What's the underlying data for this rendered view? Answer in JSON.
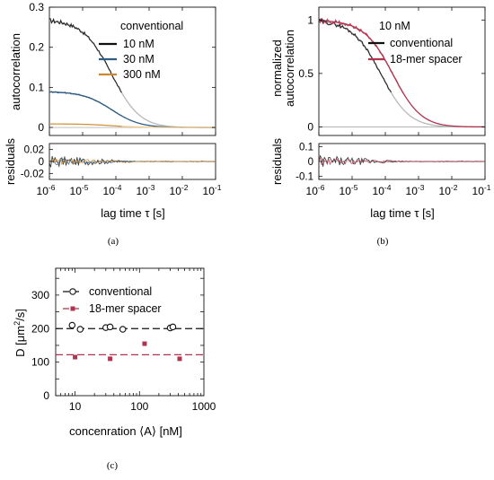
{
  "colors": {
    "black": "#111111",
    "blue": "#2e5d86",
    "orange": "#c98a2e",
    "light_orange": "#f0c98a",
    "red": "#b0344f",
    "gray": "#9a9a9a",
    "light_gray": "#b8b8b8"
  },
  "chart_data": [
    {
      "id": "a",
      "type": "line",
      "subcaption": "(a)",
      "xlabel": "lag time τ [s]",
      "ylabel": "autocorrelation",
      "residual_ylabel": "residuals",
      "x_scale": "log",
      "xlim": [
        1e-06,
        0.1
      ],
      "ylim": [
        -0.02,
        0.3
      ],
      "residual_ylim": [
        -0.03,
        0.03
      ],
      "x_ticks": [
        "10-6",
        "10-5",
        "10-4",
        "10-3",
        "10-2",
        "10-1"
      ],
      "y_ticks": [
        "0",
        "0.1",
        "0.2",
        "0.3"
      ],
      "residual_y_ticks": [
        "-0.02",
        "0",
        "0.02"
      ],
      "legend_title": "conventional",
      "legend_position": "top-right",
      "series": [
        {
          "name": "10 nM",
          "amplitude": 0.27,
          "tau_d": 7.5e-05,
          "fit_color": "light_gray",
          "data_color": "black"
        },
        {
          "name": "30 nM",
          "amplitude": 0.09,
          "tau_d": 7.5e-05,
          "fit_color": "blue",
          "data_color": "blue"
        },
        {
          "name": "300 nM",
          "amplitude": 0.009,
          "tau_d": 7.5e-05,
          "fit_color": "light_orange",
          "data_color": "orange"
        }
      ]
    },
    {
      "id": "b",
      "type": "line",
      "subcaption": "(b)",
      "xlabel": "lag time τ [s]",
      "ylabel_line1": "normalized",
      "ylabel_line2": "autocorrelation",
      "residual_ylabel": "residuals",
      "x_scale": "log",
      "xlim": [
        1e-06,
        0.1
      ],
      "ylim": [
        -0.08,
        1.12
      ],
      "residual_ylim": [
        -0.12,
        0.12
      ],
      "x_ticks": [
        "10-6",
        "10-5",
        "10-4",
        "10-3",
        "10-2",
        "10-1"
      ],
      "y_ticks": [
        "0",
        "0.5",
        "1"
      ],
      "residual_y_ticks": [
        "-0.1",
        "0",
        "0.1"
      ],
      "legend_title": "10 nM",
      "legend_position": "top-right",
      "series": [
        {
          "name": "conventional",
          "amplitude": 1.0,
          "tau_d": 7.5e-05,
          "fit_color": "light_gray",
          "data_color": "black"
        },
        {
          "name": "18-mer spacer",
          "amplitude": 1.0,
          "tau_d": 0.00017,
          "fit_color": "red",
          "data_color": "red"
        }
      ]
    },
    {
      "id": "c",
      "type": "scatter",
      "subcaption": "(c)",
      "xlabel": "concenration ⟨A⟩ [nM]",
      "ylabel_main": "D [μm",
      "ylabel_sup": "2",
      "ylabel_tail": "/s]",
      "x_scale": "log",
      "xlim": [
        5,
        1000
      ],
      "ylim": [
        0,
        380
      ],
      "x_ticks": [
        10,
        100,
        1000
      ],
      "y_ticks": [
        0,
        50,
        100,
        150,
        200,
        250,
        300,
        350
      ],
      "y_tick_labels": [
        "0",
        "",
        "100",
        "",
        "200",
        "",
        "300",
        ""
      ],
      "legend_position": "top-left",
      "reference_lines": [
        {
          "series": "conventional",
          "value": 200
        },
        {
          "series": "18-mer spacer",
          "value": 122
        }
      ],
      "series": [
        {
          "name": "conventional",
          "marker": "circle",
          "color": "black",
          "x": [
            9,
            12,
            30,
            35,
            55,
            300,
            330
          ],
          "y": [
            210,
            198,
            203,
            205,
            198,
            202,
            205
          ]
        },
        {
          "name": "18-mer spacer",
          "marker": "square",
          "color": "red",
          "x": [
            10,
            35,
            120,
            420
          ],
          "y": [
            115,
            110,
            155,
            110
          ]
        }
      ]
    }
  ]
}
